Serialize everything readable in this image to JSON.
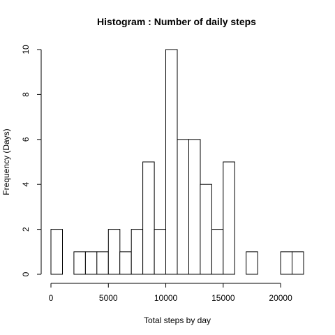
{
  "chart_data": {
    "type": "bar",
    "title": "Histogram : Number of daily steps",
    "xlabel": "Total steps by day",
    "ylabel": "Frequency (Days)",
    "bin_width": 1000,
    "bins": [
      {
        "start": 0,
        "end": 1000,
        "count": 2
      },
      {
        "start": 1000,
        "end": 2000,
        "count": 0
      },
      {
        "start": 2000,
        "end": 3000,
        "count": 1
      },
      {
        "start": 3000,
        "end": 4000,
        "count": 1
      },
      {
        "start": 4000,
        "end": 5000,
        "count": 1
      },
      {
        "start": 5000,
        "end": 6000,
        "count": 2
      },
      {
        "start": 6000,
        "end": 7000,
        "count": 1
      },
      {
        "start": 7000,
        "end": 8000,
        "count": 2
      },
      {
        "start": 8000,
        "end": 9000,
        "count": 5
      },
      {
        "start": 9000,
        "end": 10000,
        "count": 2
      },
      {
        "start": 10000,
        "end": 11000,
        "count": 10
      },
      {
        "start": 11000,
        "end": 12000,
        "count": 6
      },
      {
        "start": 12000,
        "end": 13000,
        "count": 6
      },
      {
        "start": 13000,
        "end": 14000,
        "count": 4
      },
      {
        "start": 14000,
        "end": 15000,
        "count": 2
      },
      {
        "start": 15000,
        "end": 16000,
        "count": 5
      },
      {
        "start": 16000,
        "end": 17000,
        "count": 0
      },
      {
        "start": 17000,
        "end": 18000,
        "count": 1
      },
      {
        "start": 18000,
        "end": 19000,
        "count": 0
      },
      {
        "start": 19000,
        "end": 20000,
        "count": 0
      },
      {
        "start": 20000,
        "end": 21000,
        "count": 1
      },
      {
        "start": 21000,
        "end": 22000,
        "count": 1
      }
    ],
    "xlim": [
      0,
      22000
    ],
    "ylim": [
      0,
      10
    ],
    "x_ticks": [
      0,
      5000,
      10000,
      15000,
      20000
    ],
    "x_tick_labels": [
      "0",
      "5000",
      "10000",
      "15000",
      "20000"
    ],
    "y_ticks": [
      0,
      2,
      4,
      6,
      8,
      10
    ],
    "y_tick_labels": [
      "0",
      "2",
      "4",
      "6",
      "8",
      "10"
    ],
    "grid": false,
    "legend": "none",
    "colors": {
      "bar_fill": "#ffffff",
      "bar_stroke": "#000000"
    }
  }
}
